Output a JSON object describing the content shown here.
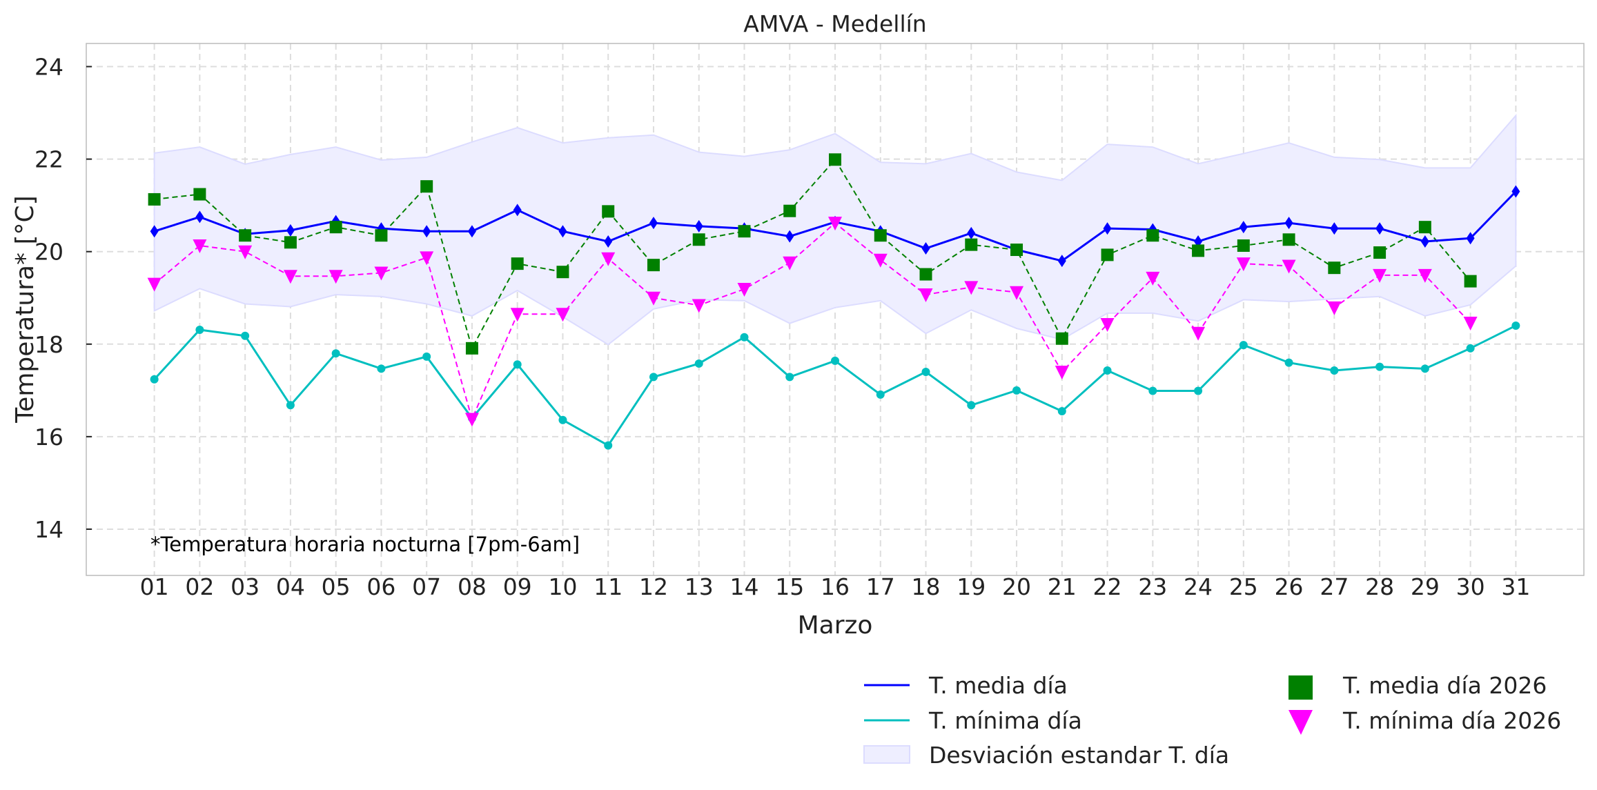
{
  "chart_data": {
    "type": "line",
    "title": "AMVA - Medellín",
    "xlabel": "Marzo",
    "ylabel": "Temperatura* [°C]",
    "annotation": "*Temperatura horaria nocturna [7pm-6am]",
    "ylim": [
      13,
      24.5
    ],
    "yticks": [
      14,
      16,
      18,
      20,
      22,
      24
    ],
    "grid": true,
    "legend_placement": "bottom-right, below plot",
    "categories": [
      "01",
      "02",
      "03",
      "04",
      "05",
      "06",
      "07",
      "08",
      "09",
      "10",
      "11",
      "12",
      "13",
      "14",
      "15",
      "16",
      "17",
      "18",
      "19",
      "20",
      "21",
      "22",
      "23",
      "24",
      "25",
      "26",
      "27",
      "28",
      "29",
      "30",
      "31"
    ],
    "series": [
      {
        "name": "T. media día",
        "color": "#0000ff",
        "style": "solid line, diamond markers",
        "values": [
          20.44,
          20.75,
          20.38,
          20.46,
          20.66,
          20.5,
          20.44,
          20.44,
          20.9,
          20.44,
          20.22,
          20.62,
          20.55,
          20.5,
          20.33,
          20.64,
          20.44,
          20.07,
          20.4,
          20.04,
          19.8,
          20.5,
          20.48,
          20.22,
          20.53,
          20.62,
          20.5,
          20.5,
          20.22,
          20.29,
          21.3
        ]
      },
      {
        "name": "T. mínima día",
        "color": "#00bfbf",
        "style": "solid line, circle markers",
        "values": [
          17.24,
          18.31,
          18.18,
          16.68,
          17.8,
          17.47,
          17.73,
          16.4,
          17.56,
          16.36,
          15.81,
          17.29,
          17.58,
          18.15,
          17.29,
          17.64,
          16.91,
          17.4,
          16.68,
          17.0,
          16.55,
          17.43,
          16.99,
          16.99,
          17.98,
          17.6,
          17.43,
          17.51,
          17.47,
          17.91,
          18.4
        ]
      },
      {
        "name": "Desviación estandar T. día",
        "color": "#e6e6ff",
        "style": "band",
        "upper": [
          22.13,
          22.26,
          21.89,
          22.1,
          22.26,
          21.98,
          22.04,
          22.37,
          22.68,
          22.35,
          22.46,
          22.52,
          22.15,
          22.06,
          22.2,
          22.55,
          21.93,
          21.9,
          22.12,
          21.72,
          21.54,
          22.32,
          22.26,
          21.9,
          22.12,
          22.35,
          22.04,
          21.99,
          21.81,
          21.81,
          22.94
        ],
        "lower": [
          18.72,
          19.2,
          18.87,
          18.81,
          19.07,
          19.03,
          18.87,
          18.61,
          19.16,
          18.59,
          17.99,
          18.76,
          18.96,
          18.94,
          18.45,
          18.79,
          18.94,
          18.23,
          18.74,
          18.34,
          18.1,
          18.67,
          18.67,
          18.5,
          18.96,
          18.92,
          18.98,
          19.03,
          18.61,
          18.85,
          19.69
        ]
      },
      {
        "name": "T. media día 2026",
        "color": "#008000",
        "style": "dashed line, square markers",
        "values": [
          21.13,
          21.24,
          20.35,
          20.2,
          20.53,
          20.35,
          21.41,
          17.91,
          19.74,
          19.56,
          20.87,
          19.71,
          20.26,
          20.44,
          20.88,
          21.99,
          20.35,
          19.51,
          20.15,
          20.04,
          18.12,
          19.93,
          20.35,
          20.02,
          20.13,
          20.26,
          19.65,
          19.98,
          20.53,
          19.36,
          null
        ]
      },
      {
        "name": "T. mínima día 2026",
        "color": "#ff00ff",
        "style": "dashed line, triangle-down markers",
        "values": [
          19.3,
          20.13,
          20.0,
          19.47,
          19.47,
          19.54,
          19.87,
          16.38,
          18.65,
          18.65,
          19.85,
          19.0,
          18.84,
          19.19,
          19.76,
          20.62,
          19.82,
          19.07,
          19.23,
          19.12,
          17.4,
          18.43,
          19.43,
          18.24,
          19.74,
          19.69,
          18.79,
          19.49,
          19.49,
          18.46,
          null
        ]
      }
    ]
  }
}
